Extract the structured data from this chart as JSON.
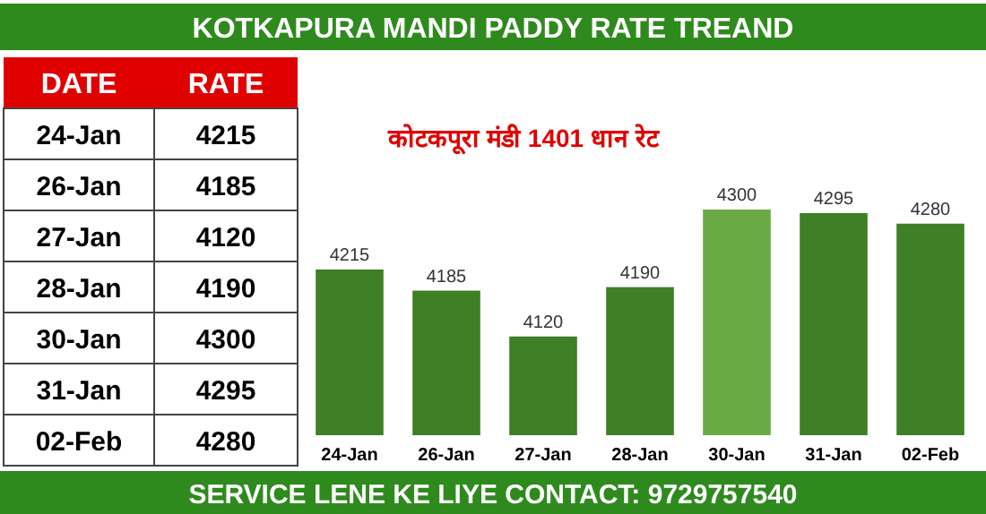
{
  "chart_data": [
    {
      "type": "other",
      "annotations": [
        "DATE",
        "RATE"
      ],
      "data_labels": true,
      "categories": [
        "24-Jan",
        "26-Jan",
        "27-Jan",
        "28-Jan",
        "30-Jan",
        "31-Jan",
        "02-Feb"
      ],
      "values": [
        4215,
        4185,
        4120,
        4190,
        4300,
        4295,
        4280
      ]
    },
    {
      "type": "bar",
      "title": "KOTKAPURA MANDI PADDY RATE TREAND",
      "subtitle": "कोटकपूरा  मंडी 1401 धान रेट",
      "categories": [
        "24-Jan",
        "26-Jan",
        "27-Jan",
        "28-Jan",
        "30-Jan",
        "31-Jan",
        "02-Feb"
      ],
      "values": [
        4215,
        4185,
        4120,
        4190,
        4300,
        4295,
        4280
      ],
      "colors": [
        "#3f7f25",
        "#3f7f25",
        "#3f7f25",
        "#3f7f25",
        "#6aaa45",
        "#3f7f25",
        "#3f7f25"
      ],
      "ylim": [
        3980,
        4300
      ],
      "data_labels": true,
      "annotations": [
        "SERVICE LENE KE LIYE CONTACT: 9729757540"
      ]
    }
  ]
}
